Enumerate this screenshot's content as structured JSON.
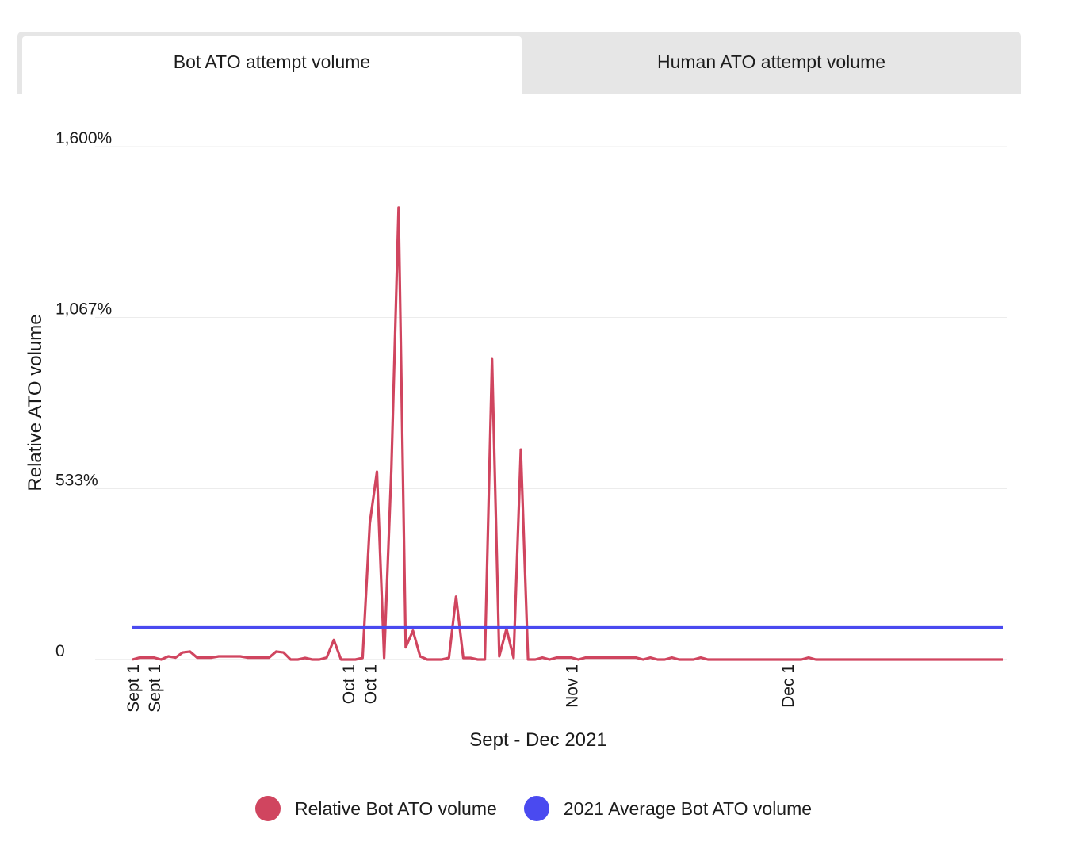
{
  "tabs": [
    {
      "label": "Bot ATO attempt volume",
      "active": true
    },
    {
      "label": "Human ATO attempt volume",
      "active": false
    }
  ],
  "chart_data": {
    "type": "line",
    "title": "",
    "xlabel": "Sept - Dec 2021",
    "ylabel": "Relative ATO volume",
    "ylim": [
      0,
      1600
    ],
    "y_ticks": [
      0,
      533,
      1067,
      1600
    ],
    "y_tick_labels": [
      "0",
      "533%",
      "1,067%",
      "1,600%"
    ],
    "x_tick_labels": [
      {
        "label": "Sept 1",
        "x": 1
      },
      {
        "label": "Sept 1",
        "x": 4
      },
      {
        "label": "Oct 1",
        "x": 31
      },
      {
        "label": "Oct 1",
        "x": 34
      },
      {
        "label": "Nov 1",
        "x": 62
      },
      {
        "label": "Dec 1",
        "x": 92
      }
    ],
    "xlim": [
      1,
      122
    ],
    "grid": true,
    "legend_position": "bottom",
    "series": [
      {
        "name": "Relative Bot ATO volume",
        "color": "#d0455f",
        "x": [
          1,
          2,
          3,
          4,
          5,
          6,
          7,
          8,
          9,
          10,
          11,
          12,
          13,
          14,
          15,
          16,
          17,
          18,
          19,
          20,
          21,
          22,
          23,
          24,
          25,
          26,
          27,
          28,
          29,
          30,
          31,
          32,
          33,
          34,
          35,
          36,
          37,
          38,
          39,
          40,
          41,
          42,
          43,
          44,
          45,
          46,
          47,
          48,
          49,
          50,
          51,
          52,
          53,
          54,
          55,
          56,
          57,
          58,
          59,
          60,
          61,
          62,
          63,
          64,
          65,
          66,
          67,
          68,
          69,
          70,
          71,
          72,
          73,
          74,
          75,
          76,
          77,
          78,
          79,
          80,
          81,
          82,
          83,
          84,
          85,
          86,
          87,
          88,
          89,
          90,
          91,
          92,
          93,
          94,
          95,
          96,
          97,
          98,
          99,
          100,
          101,
          102,
          103,
          104,
          105,
          106,
          107,
          108,
          109,
          110,
          111,
          112,
          113,
          114,
          115,
          116,
          117,
          118,
          119,
          120,
          121,
          122
        ],
        "values": [
          0,
          6,
          6,
          6,
          0,
          10,
          6,
          22,
          25,
          6,
          6,
          6,
          10,
          10,
          10,
          10,
          6,
          6,
          6,
          6,
          25,
          22,
          0,
          0,
          5,
          0,
          0,
          6,
          61,
          0,
          0,
          0,
          5,
          425,
          586,
          5,
          594,
          1410,
          38,
          90,
          10,
          0,
          0,
          0,
          5,
          196,
          5,
          5,
          0,
          0,
          937,
          10,
          96,
          5,
          655,
          0,
          0,
          6,
          0,
          6,
          6,
          6,
          0,
          6,
          6,
          6,
          6,
          6,
          6,
          6,
          6,
          0,
          6,
          0,
          0,
          6,
          0,
          0,
          0,
          6,
          0,
          0,
          0,
          0,
          0,
          0,
          0,
          0,
          0,
          0,
          0,
          0,
          0,
          0,
          6,
          0,
          0,
          0,
          0,
          0,
          0,
          0,
          0,
          0,
          0,
          0,
          0,
          0,
          0,
          0,
          0,
          0,
          0,
          0,
          0,
          0,
          0,
          0,
          0,
          0,
          0,
          0
        ]
      },
      {
        "name": "2021 Average Bot ATO volume",
        "color": "#4a4af0",
        "x": [
          1,
          122
        ],
        "values": [
          100,
          100
        ]
      }
    ]
  }
}
